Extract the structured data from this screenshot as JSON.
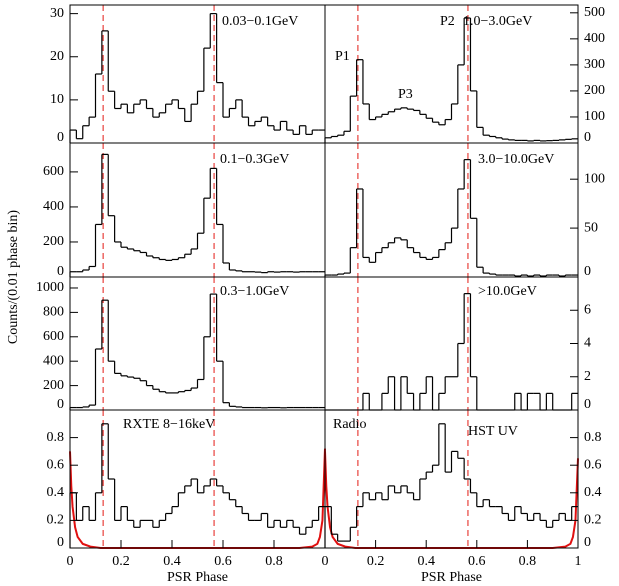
{
  "figure": {
    "ylabel": "Counts/(0.01 phase bin)"
  },
  "chart_data": [
    {
      "type": "histogram",
      "label": "0.03−0.1GeV",
      "yaxis_side": "left",
      "color": "#000000",
      "xlim": [
        0,
        1
      ],
      "ylim": [
        0,
        32
      ],
      "yticks": [
        0,
        10,
        20,
        30
      ],
      "bins": [
        0,
        0.025,
        0.05,
        0.075,
        0.1,
        0.125,
        0.15,
        0.175,
        0.2,
        0.225,
        0.25,
        0.275,
        0.3,
        0.325,
        0.35,
        0.375,
        0.4,
        0.425,
        0.45,
        0.475,
        0.5,
        0.525,
        0.55,
        0.575,
        0.6,
        0.625,
        0.65,
        0.675,
        0.7,
        0.725,
        0.75,
        0.775,
        0.8,
        0.825,
        0.85,
        0.875,
        0.9,
        0.925,
        0.95,
        0.975,
        1
      ],
      "values": [
        3,
        1,
        4,
        6,
        16,
        26,
        12,
        8,
        9,
        7,
        9,
        10,
        8,
        6,
        7,
        9,
        10,
        8,
        5,
        9,
        12,
        22,
        30,
        14,
        6,
        8,
        10,
        6,
        4,
        5,
        6,
        4,
        3,
        5,
        3,
        2,
        4,
        2,
        3,
        3
      ],
      "reference_lines": [
        0.13,
        0.565
      ],
      "reference_color": "#e8413c"
    },
    {
      "type": "histogram",
      "label": "1.0−3.0GeV",
      "annotations": [
        "P1",
        "P2",
        "P3"
      ],
      "yaxis_side": "right",
      "color": "#000000",
      "xlim": [
        0,
        1
      ],
      "ylim": [
        0,
        530
      ],
      "yticks": [
        0,
        100,
        200,
        300,
        400,
        500
      ],
      "bins": [
        0,
        0.025,
        0.05,
        0.075,
        0.1,
        0.125,
        0.15,
        0.175,
        0.2,
        0.225,
        0.25,
        0.275,
        0.3,
        0.325,
        0.35,
        0.375,
        0.4,
        0.425,
        0.45,
        0.475,
        0.5,
        0.525,
        0.55,
        0.575,
        0.6,
        0.625,
        0.65,
        0.675,
        0.7,
        0.725,
        0.75,
        0.775,
        0.8,
        0.825,
        0.85,
        0.875,
        0.9,
        0.925,
        0.95,
        0.975,
        1
      ],
      "values": [
        20,
        25,
        30,
        45,
        180,
        320,
        150,
        90,
        100,
        110,
        120,
        130,
        135,
        130,
        125,
        110,
        95,
        80,
        70,
        90,
        150,
        300,
        480,
        200,
        60,
        30,
        25,
        20,
        15,
        12,
        10,
        10,
        8,
        10,
        8,
        9,
        10,
        12,
        14,
        16
      ],
      "reference_lines": [
        0.13,
        0.565
      ],
      "reference_color": "#e8413c"
    },
    {
      "type": "histogram",
      "label": "0.1−0.3GeV",
      "yaxis_side": "left",
      "color": "#000000",
      "xlim": [
        0,
        1
      ],
      "ylim": [
        0,
        765
      ],
      "yticks": [
        0,
        200,
        400,
        600
      ],
      "bins": [
        0,
        0.025,
        0.05,
        0.075,
        0.1,
        0.125,
        0.15,
        0.175,
        0.2,
        0.225,
        0.25,
        0.275,
        0.3,
        0.325,
        0.35,
        0.375,
        0.4,
        0.425,
        0.45,
        0.475,
        0.5,
        0.525,
        0.55,
        0.575,
        0.6,
        0.625,
        0.65,
        0.675,
        0.7,
        0.725,
        0.75,
        0.775,
        0.8,
        0.825,
        0.85,
        0.875,
        0.9,
        0.925,
        0.95,
        0.975,
        1
      ],
      "values": [
        30,
        30,
        40,
        60,
        300,
        700,
        350,
        200,
        170,
        160,
        150,
        140,
        120,
        110,
        100,
        95,
        100,
        110,
        130,
        160,
        250,
        450,
        620,
        300,
        80,
        40,
        35,
        30,
        30,
        28,
        25,
        30,
        28,
        30,
        30,
        28,
        30,
        30,
        30,
        30
      ],
      "reference_lines": [
        0.13,
        0.565
      ],
      "reference_color": "#e8413c"
    },
    {
      "type": "histogram",
      "label": "3.0−10.0GeV",
      "yaxis_side": "right",
      "color": "#000000",
      "xlim": [
        0,
        1
      ],
      "ylim": [
        0,
        137
      ],
      "yticks": [
        0,
        50,
        100
      ],
      "bins": [
        0,
        0.025,
        0.05,
        0.075,
        0.1,
        0.125,
        0.15,
        0.175,
        0.2,
        0.225,
        0.25,
        0.275,
        0.3,
        0.325,
        0.35,
        0.375,
        0.4,
        0.425,
        0.45,
        0.475,
        0.5,
        0.525,
        0.55,
        0.575,
        0.6,
        0.625,
        0.65,
        0.675,
        0.7,
        0.725,
        0.75,
        0.775,
        0.8,
        0.825,
        0.85,
        0.875,
        0.9,
        0.925,
        0.95,
        0.975,
        1
      ],
      "values": [
        2,
        2,
        3,
        4,
        30,
        90,
        20,
        15,
        25,
        30,
        35,
        40,
        38,
        30,
        25,
        20,
        18,
        20,
        28,
        35,
        50,
        90,
        120,
        60,
        10,
        4,
        3,
        2,
        2,
        2,
        1,
        2,
        1,
        2,
        1,
        2,
        2,
        1,
        2,
        2
      ],
      "reference_lines": [
        0.13,
        0.565
      ],
      "reference_color": "#e8413c"
    },
    {
      "type": "histogram",
      "label": "0.3−1.0GeV",
      "yaxis_side": "left",
      "color": "#000000",
      "xlim": [
        0,
        1
      ],
      "ylim": [
        0,
        1090
      ],
      "yticks": [
        0,
        200,
        400,
        600,
        800,
        1000
      ],
      "bins": [
        0,
        0.025,
        0.05,
        0.075,
        0.1,
        0.125,
        0.15,
        0.175,
        0.2,
        0.225,
        0.25,
        0.275,
        0.3,
        0.325,
        0.35,
        0.375,
        0.4,
        0.425,
        0.45,
        0.475,
        0.5,
        0.525,
        0.55,
        0.575,
        0.6,
        0.625,
        0.65,
        0.675,
        0.7,
        0.725,
        0.75,
        0.775,
        0.8,
        0.825,
        0.85,
        0.875,
        0.9,
        0.925,
        0.95,
        0.975,
        1
      ],
      "values": [
        20,
        20,
        25,
        40,
        500,
        900,
        400,
        300,
        280,
        270,
        260,
        240,
        200,
        170,
        150,
        140,
        140,
        150,
        160,
        180,
        250,
        600,
        950,
        400,
        60,
        30,
        25,
        20,
        20,
        20,
        18,
        20,
        20,
        18,
        20,
        20,
        20,
        20,
        20,
        20
      ],
      "reference_lines": [
        0.13,
        0.565
      ],
      "reference_color": "#e8413c"
    },
    {
      "type": "histogram",
      "label": ">10.0GeV",
      "yaxis_side": "right",
      "color": "#000000",
      "xlim": [
        0,
        1
      ],
      "ylim": [
        0,
        8
      ],
      "yticks": [
        0,
        2,
        4,
        6
      ],
      "bins": [
        0,
        0.025,
        0.05,
        0.075,
        0.1,
        0.125,
        0.15,
        0.175,
        0.2,
        0.225,
        0.25,
        0.275,
        0.3,
        0.325,
        0.35,
        0.375,
        0.4,
        0.425,
        0.45,
        0.475,
        0.5,
        0.525,
        0.55,
        0.575,
        0.6,
        0.625,
        0.65,
        0.675,
        0.7,
        0.725,
        0.75,
        0.775,
        0.8,
        0.825,
        0.85,
        0.875,
        0.9,
        0.925,
        0.95,
        0.975,
        1
      ],
      "values": [
        0,
        0,
        0,
        0,
        0,
        0,
        1,
        0,
        0,
        1,
        2,
        0,
        2,
        1,
        0,
        1,
        2,
        0,
        1,
        2,
        2,
        4,
        7,
        2,
        0,
        0,
        0,
        0,
        0,
        0,
        1,
        0,
        1,
        1,
        0,
        1,
        0,
        0,
        0,
        1
      ],
      "reference_lines": [
        0.13,
        0.565
      ],
      "reference_color": "#e8413c"
    },
    {
      "type": "histogram",
      "label": "RXTE 8−16keV",
      "yaxis_side": "left",
      "color": "#000000",
      "xlim": [
        0,
        1
      ],
      "ylim": [
        0,
        1
      ],
      "yticks": [
        0,
        0.2,
        0.4,
        0.6,
        0.8
      ],
      "xticks": [
        0,
        0.2,
        0.4,
        0.6,
        0.8
      ],
      "xlabel": "PSR Phase",
      "bins": [
        0,
        0.025,
        0.05,
        0.075,
        0.1,
        0.125,
        0.15,
        0.175,
        0.2,
        0.225,
        0.25,
        0.275,
        0.3,
        0.325,
        0.35,
        0.375,
        0.4,
        0.425,
        0.45,
        0.475,
        0.5,
        0.525,
        0.55,
        0.575,
        0.6,
        0.625,
        0.65,
        0.675,
        0.7,
        0.725,
        0.75,
        0.775,
        0.8,
        0.825,
        0.85,
        0.875,
        0.9,
        0.925,
        0.95,
        0.975,
        1
      ],
      "values": [
        0.4,
        0.2,
        0.3,
        0.2,
        0.4,
        0.9,
        0.5,
        0.2,
        0.3,
        0.2,
        0.15,
        0.2,
        0.2,
        0.15,
        0.2,
        0.25,
        0.3,
        0.4,
        0.45,
        0.5,
        0.4,
        0.45,
        0.5,
        0.45,
        0.4,
        0.35,
        0.3,
        0.25,
        0.2,
        0.2,
        0.25,
        0.15,
        0.2,
        0.15,
        0.2,
        0.15,
        0.1,
        0.15,
        0.2,
        0.3
      ],
      "curve": {
        "color": "#e01010",
        "x": [
          0,
          0.005,
          0.01,
          0.02,
          0.03,
          0.05,
          0.08,
          0.12,
          0.9,
          0.95,
          0.97,
          0.98,
          0.99,
          1
        ],
        "values": [
          0.7,
          0.45,
          0.3,
          0.15,
          0.08,
          0.03,
          0.01,
          0,
          0,
          0.01,
          0.03,
          0.08,
          0.2,
          0.72
        ]
      },
      "reference_lines": [
        0.13,
        0.565
      ],
      "reference_color": "#e8413c"
    },
    {
      "type": "histogram",
      "label": "HST UV",
      "annotations": [
        "Radio"
      ],
      "yaxis_side": "right",
      "color": "#000000",
      "xlim": [
        0,
        1
      ],
      "ylim": [
        0,
        1
      ],
      "yticks": [
        0,
        0.2,
        0.4,
        0.6,
        0.8
      ],
      "xticks": [
        0,
        0.2,
        0.4,
        0.6,
        0.8,
        1
      ],
      "xlabel": "PSR Phase",
      "bins": [
        0,
        0.025,
        0.05,
        0.075,
        0.1,
        0.125,
        0.15,
        0.175,
        0.2,
        0.225,
        0.25,
        0.275,
        0.3,
        0.325,
        0.35,
        0.375,
        0.4,
        0.425,
        0.45,
        0.475,
        0.5,
        0.525,
        0.55,
        0.575,
        0.6,
        0.625,
        0.65,
        0.675,
        0.7,
        0.725,
        0.75,
        0.775,
        0.8,
        0.825,
        0.85,
        0.875,
        0.9,
        0.925,
        0.95,
        0.975,
        1
      ],
      "values": [
        0.3,
        0.1,
        0.05,
        0.05,
        0.15,
        0.3,
        0.4,
        0.35,
        0.4,
        0.35,
        0.45,
        0.4,
        0.45,
        0.4,
        0.35,
        0.5,
        0.55,
        0.6,
        0.9,
        0.55,
        0.7,
        0.65,
        0.5,
        0.4,
        0.3,
        0.35,
        0.3,
        0.3,
        0.25,
        0.2,
        0.3,
        0.25,
        0.2,
        0.25,
        0.2,
        0.15,
        0.2,
        0.25,
        0.2,
        0.3
      ],
      "curve": {
        "color": "#e01010",
        "x": [
          0,
          0.005,
          0.01,
          0.02,
          0.03,
          0.05,
          0.08,
          0.12,
          0.9,
          0.95,
          0.97,
          0.98,
          0.99,
          1
        ],
        "values": [
          0.7,
          0.45,
          0.3,
          0.15,
          0.08,
          0.03,
          0.01,
          0,
          0,
          0.01,
          0.03,
          0.08,
          0.2,
          0.65
        ]
      },
      "reference_lines": [
        0.13,
        0.565
      ],
      "reference_color": "#e8413c"
    }
  ]
}
